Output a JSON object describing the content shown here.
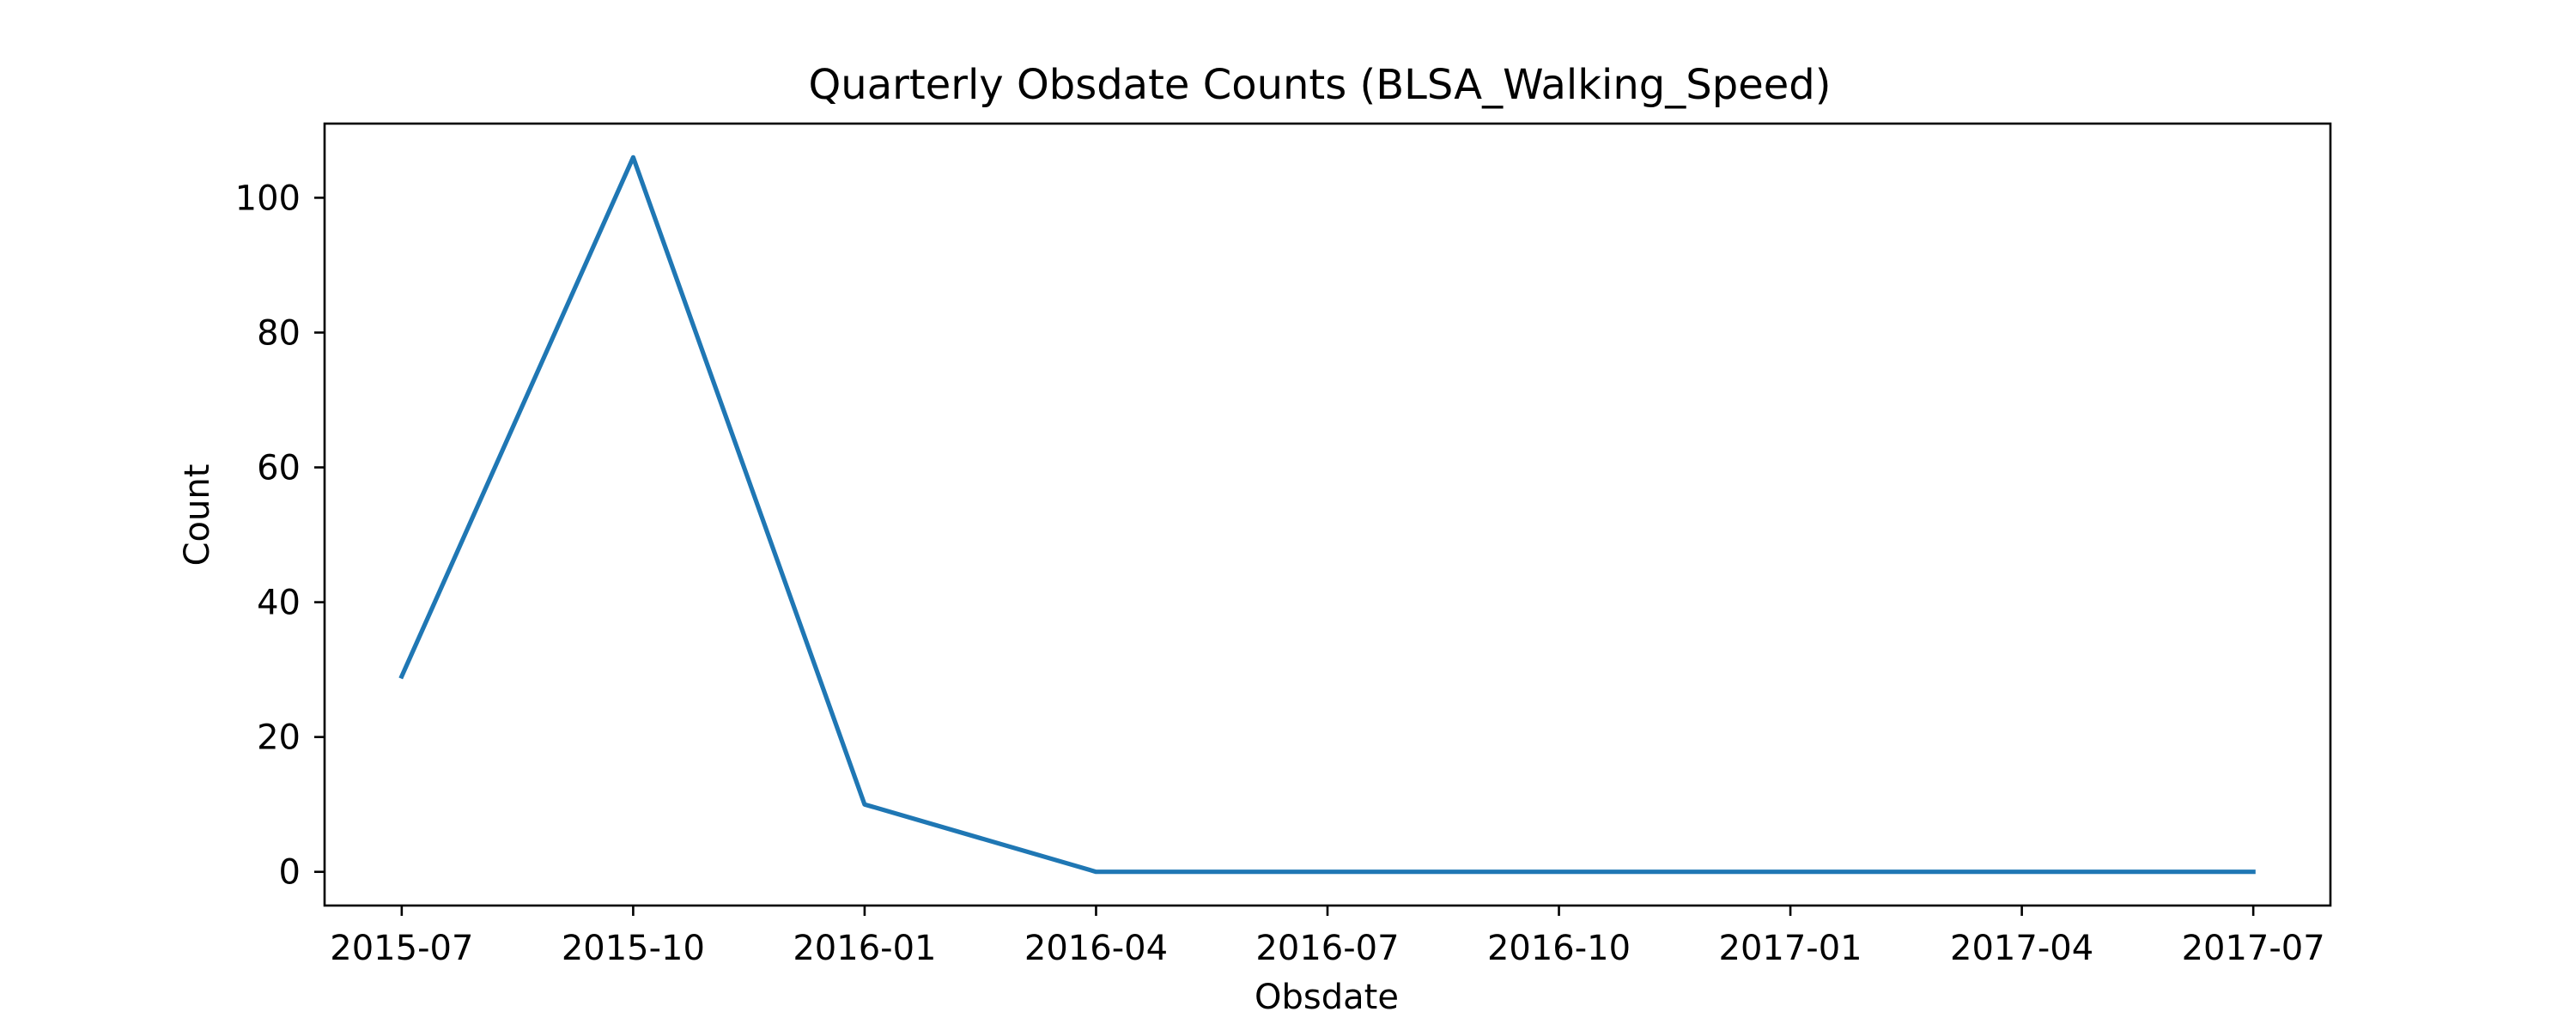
{
  "chart_data": {
    "type": "line",
    "title": "Quarterly Obsdate Counts (BLSA_Walking_Speed)",
    "xlabel": "Obsdate",
    "ylabel": "Count",
    "x": [
      "2015-07",
      "2015-10",
      "2016-01",
      "2016-04",
      "2016-07",
      "2016-10",
      "2017-01",
      "2017-04",
      "2017-07"
    ],
    "x_ticks": [
      "2015-07",
      "2015-10",
      "2016-01",
      "2016-04",
      "2016-07",
      "2016-10",
      "2017-01",
      "2017-04",
      "2017-07"
    ],
    "y_ticks": [
      0,
      20,
      40,
      60,
      80,
      100
    ],
    "xlim": [
      "2015-06",
      "2017-08"
    ],
    "ylim": [
      -5,
      111
    ],
    "grid": false,
    "series": [
      {
        "color": "#1f77b4",
        "values": [
          29,
          106,
          10,
          0,
          0,
          0,
          0,
          0,
          0
        ]
      }
    ]
  }
}
